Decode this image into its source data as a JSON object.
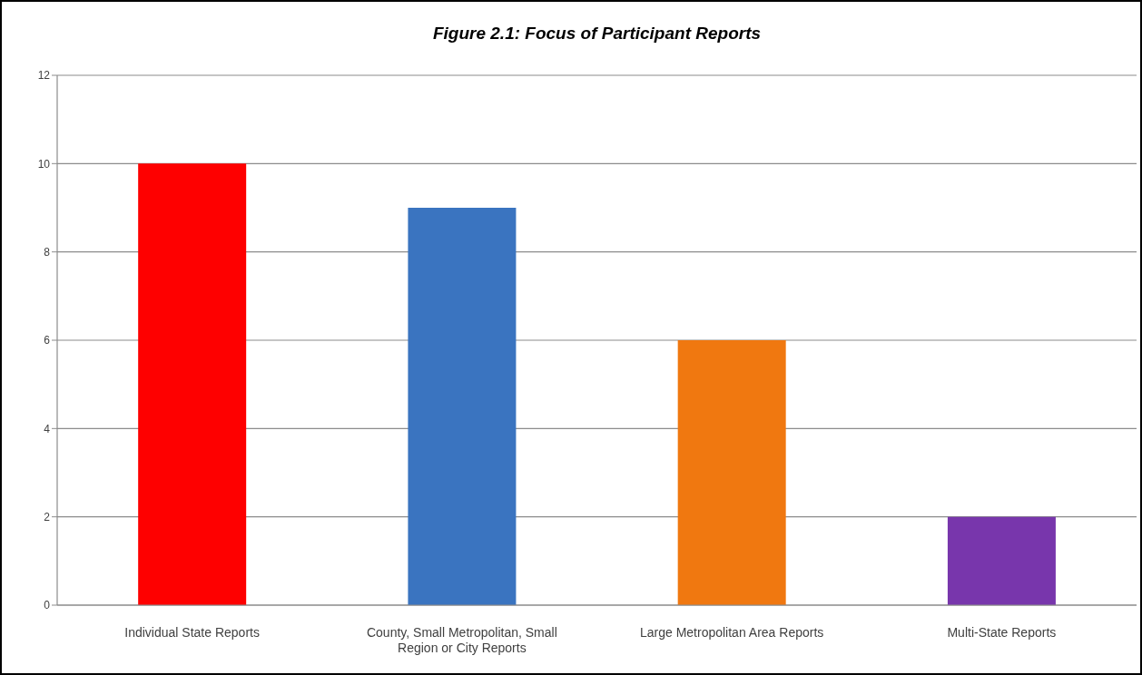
{
  "chart_data": {
    "type": "bar",
    "title": "Figure 2.1: Focus of Participant Reports",
    "categories": [
      "Individual State Reports",
      "County, Small Metropolitan, Small Region or City Reports",
      "Large Metropolitan Area Reports",
      "Multi-State Reports"
    ],
    "values": [
      10,
      9,
      6,
      2
    ],
    "colors": [
      "#fe0000",
      "#3a74c0",
      "#f07810",
      "#7836ac"
    ],
    "ylim": [
      0,
      12
    ],
    "yticks": [
      0,
      2,
      4,
      6,
      8,
      10,
      12
    ],
    "grid": "y"
  }
}
